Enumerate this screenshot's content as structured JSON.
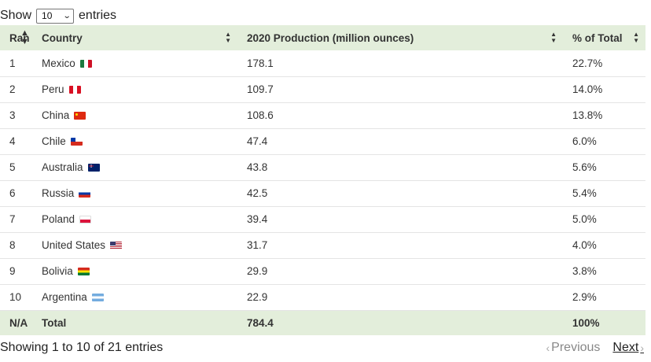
{
  "length_menu": {
    "prefix": "Show",
    "selected": "10",
    "suffix": "entries"
  },
  "table": {
    "headers": {
      "rank": "Rank",
      "country": "Country",
      "production": "2020 Production (million ounces)",
      "pct": "% of Total"
    },
    "rows": [
      {
        "rank": "1",
        "country": "Mexico",
        "flag": "flag-mexico",
        "production": "178.1",
        "pct": "22.7%"
      },
      {
        "rank": "2",
        "country": "Peru",
        "flag": "flag-peru",
        "production": "109.7",
        "pct": "14.0%"
      },
      {
        "rank": "3",
        "country": "China",
        "flag": "flag-china",
        "production": "108.6",
        "pct": "13.8%"
      },
      {
        "rank": "4",
        "country": "Chile",
        "flag": "flag-chile",
        "production": "47.4",
        "pct": "6.0%"
      },
      {
        "rank": "5",
        "country": "Australia",
        "flag": "flag-australia",
        "production": "43.8",
        "pct": "5.6%"
      },
      {
        "rank": "6",
        "country": "Russia",
        "flag": "flag-russia",
        "production": "42.5",
        "pct": "5.4%"
      },
      {
        "rank": "7",
        "country": "Poland",
        "flag": "flag-poland",
        "production": "39.4",
        "pct": "5.0%"
      },
      {
        "rank": "8",
        "country": "United States",
        "flag": "flag-united-states",
        "production": "31.7",
        "pct": "4.0%"
      },
      {
        "rank": "9",
        "country": "Bolivia",
        "flag": "flag-bolivia",
        "production": "29.9",
        "pct": "3.8%"
      },
      {
        "rank": "10",
        "country": "Argentina",
        "flag": "flag-argentina",
        "production": "22.9",
        "pct": "2.9%"
      }
    ],
    "footer": {
      "rank": "N/A",
      "country": "Total",
      "production": "784.4",
      "pct": "100%"
    }
  },
  "info": "Showing 1 to 10 of 21 entries",
  "pagination": {
    "previous": "Previous",
    "next": "Next"
  },
  "icons": {
    "sort": "sort-both-icon",
    "prev_arrow": "chevron-left-icon",
    "next_arrow": "chevron-right-icon"
  }
}
